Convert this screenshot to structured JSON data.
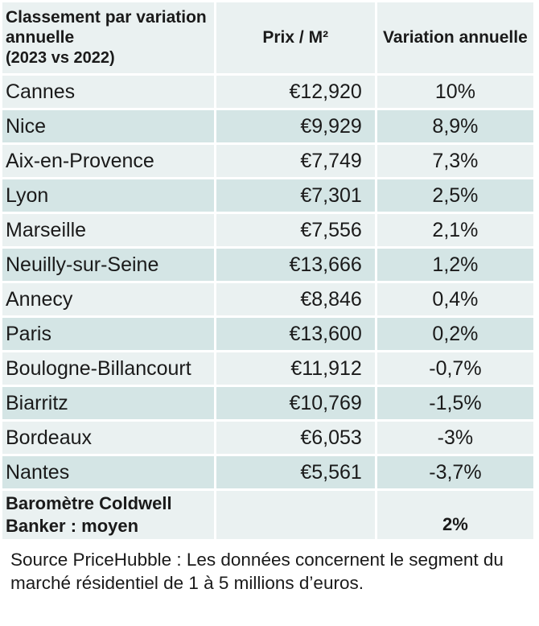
{
  "chart_data": {
    "type": "table",
    "columns": [
      "Classement par variation annuelle",
      "(2023 vs 2022)",
      "Prix / M²",
      "Variation annuelle"
    ],
    "rows": [
      {
        "city": "Cannes",
        "price": "€12,920",
        "variation": "10%"
      },
      {
        "city": "Nice",
        "price": "€9,929",
        "variation": "8,9%"
      },
      {
        "city": "Aix-en-Provence",
        "price": "€7,749",
        "variation": "7,3%"
      },
      {
        "city": "Lyon",
        "price": "€7,301",
        "variation": "2,5%"
      },
      {
        "city": "Marseille",
        "price": "€7,556",
        "variation": "2,1%"
      },
      {
        "city": "Neuilly-sur-Seine",
        "price": "€13,666",
        "variation": "1,2%"
      },
      {
        "city": "Annecy",
        "price": "€8,846",
        "variation": "0,4%"
      },
      {
        "city": "Paris",
        "price": "€13,600",
        "variation": "0,2%"
      },
      {
        "city": "Boulogne-Billancourt",
        "price": "€11,912",
        "variation": "-0,7%"
      },
      {
        "city": "Biarritz",
        "price": "€10,769",
        "variation": "-1,5%"
      },
      {
        "city": "Bordeaux",
        "price": "€6,053",
        "variation": "-3%"
      },
      {
        "city": "Nantes",
        "price": "€5,561",
        "variation": "-3,7%"
      }
    ],
    "footer": {
      "label": "Baromètre Coldwell Banker : moyen",
      "variation": "2%"
    },
    "source": "Source PriceHubble : Les données concernent le segment du marché résidentiel de 1 à 5 millions d’euros."
  },
  "colors": {
    "row_light": "#eaf1f1",
    "row_dark": "#d4e5e5"
  }
}
